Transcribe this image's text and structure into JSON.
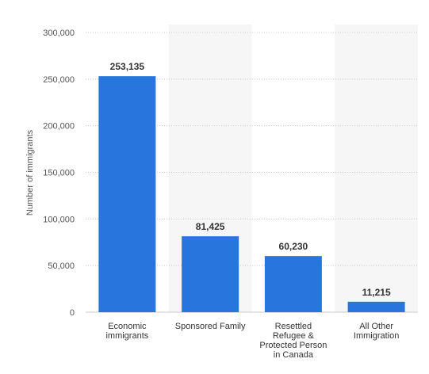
{
  "chart_data": {
    "type": "bar",
    "categories": [
      [
        "Economic",
        "immigrants"
      ],
      [
        "Sponsored Family"
      ],
      [
        "Resettled",
        "Refugee &",
        "Protected Person",
        "in Canada"
      ],
      [
        "All Other",
        "Immigration"
      ]
    ],
    "values": [
      253135,
      81425,
      60230,
      11215
    ],
    "data_labels": [
      "253,135",
      "81,425",
      "60,230",
      "11,215"
    ],
    "ylabel": "Number of immigrants",
    "ylim": [
      0,
      300000
    ],
    "yticks": [
      0,
      50000,
      100000,
      150000,
      200000,
      250000,
      300000
    ],
    "ytick_labels": [
      "0",
      "50,000",
      "100,000",
      "150,000",
      "200,000",
      "250,000",
      "300,000"
    ],
    "grid": true,
    "grid_style": "dotted",
    "alternating_column_bands": true,
    "colors": {
      "bar": "#2876dd",
      "grid": "#c8c8c8",
      "band": "#f6f6f6"
    }
  }
}
